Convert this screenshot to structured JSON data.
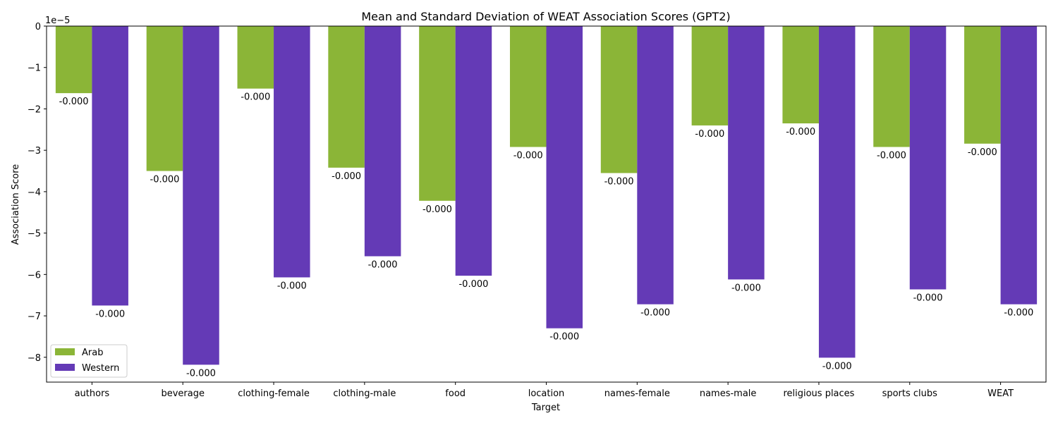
{
  "chart_data": {
    "type": "bar",
    "title": "Mean and Standard Deviation of WEAT Association Scores (GPT2)",
    "xlabel": "Target",
    "ylabel": "Association Score",
    "offset_label": "1e−5",
    "categories": [
      "authors",
      "beverage",
      "clothing-female",
      "clothing-male",
      "food",
      "location",
      "names-female",
      "names-male",
      "religious places",
      "sports clubs",
      "WEAT"
    ],
    "series": [
      {
        "name": "Arab",
        "color": "#8bb537",
        "values": [
          -1.62,
          -3.5,
          -1.51,
          -3.42,
          -4.22,
          -2.92,
          -3.55,
          -2.4,
          -2.35,
          -2.92,
          -2.84
        ],
        "labels": [
          "-0.000",
          "-0.000",
          "-0.000",
          "-0.000",
          "-0.000",
          "-0.000",
          "-0.000",
          "-0.000",
          "-0.000",
          "-0.000",
          "-0.000"
        ]
      },
      {
        "name": "Western",
        "color": "#643ab6",
        "values": [
          -6.75,
          -8.18,
          -6.07,
          -5.56,
          -6.03,
          -7.3,
          -6.72,
          -6.12,
          -8.01,
          -6.36,
          -6.72
        ],
        "labels": [
          "-0.000",
          "-0.000",
          "-0.000",
          "-0.000",
          "-0.000",
          "-0.000",
          "-0.000",
          "-0.000",
          "-0.000",
          "-0.000",
          "-0.000"
        ]
      }
    ],
    "ylim": [
      -8.6,
      0
    ],
    "yticks": [
      0,
      -1,
      -2,
      -3,
      -4,
      -5,
      -6,
      -7,
      -8
    ],
    "ytick_labels": [
      "0",
      "−1",
      "−2",
      "−3",
      "−4",
      "−5",
      "−6",
      "−7",
      "−8"
    ],
    "legend": "lower-left",
    "grid": false
  }
}
